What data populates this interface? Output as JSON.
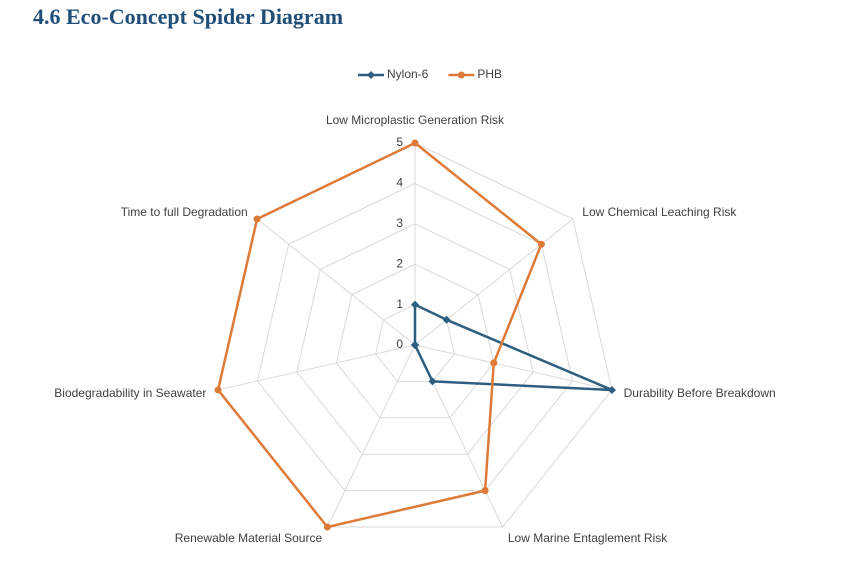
{
  "heading": "4.6 Eco-Concept Spider Diagram",
  "chart_data": {
    "type": "radar",
    "categories": [
      "Low Microplastic Generation Risk",
      "Low Chemical Leaching Risk",
      "Durability Before Breakdown",
      "Low Marine Entaglement Risk",
      "Renewable Material Source",
      "Biodegradability in Seawater",
      "Time to full Degradation"
    ],
    "series": [
      {
        "name": "Nylon-6",
        "color": "#2f5f80",
        "marker": "diamond",
        "values": [
          1,
          1,
          5,
          1,
          0,
          0,
          0
        ]
      },
      {
        "name": "PHB",
        "color": "#de7a38",
        "marker": "circle",
        "values": [
          5,
          4,
          2,
          4,
          5,
          5,
          5
        ]
      }
    ],
    "rlim": [
      0,
      5
    ],
    "rticks": [
      0,
      1,
      2,
      3,
      4,
      5
    ],
    "grid": true,
    "legend": "top"
  }
}
